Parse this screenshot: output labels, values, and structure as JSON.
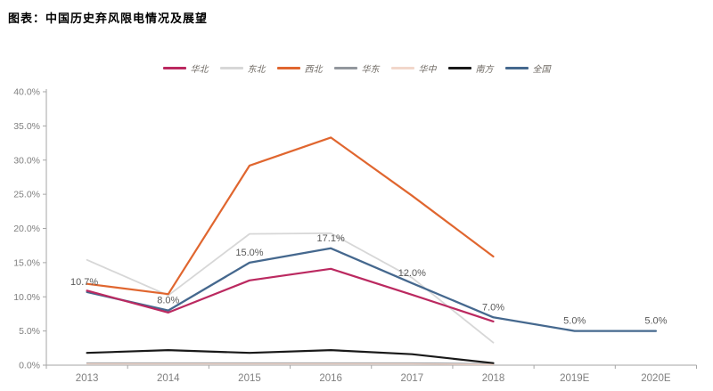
{
  "title": "图表：中国历史弃风限电情况及展望",
  "chart_data": {
    "type": "line",
    "title": "中国历史弃风限电情况及展望",
    "categories": [
      "2013",
      "2014",
      "2015",
      "2016",
      "2017",
      "2018",
      "2019E",
      "2020E"
    ],
    "series": [
      {
        "name": "东北",
        "color": "#d7d7d7",
        "width": 1.8,
        "values": [
          15.4,
          10.2,
          19.2,
          19.3,
          12.8,
          3.3,
          null,
          null
        ]
      },
      {
        "name": "西北",
        "color": "#e0662f",
        "width": 2.2,
        "values": [
          11.9,
          10.4,
          29.2,
          33.3,
          24.8,
          15.9,
          null,
          null
        ]
      },
      {
        "name": "华东",
        "color": "#92979d",
        "width": 1.6,
        "values": [
          0.3,
          0.3,
          0.3,
          0.3,
          0.3,
          0.2,
          null,
          null
        ]
      },
      {
        "name": "华中",
        "color": "#f2d7cb",
        "width": 1.5,
        "values": [
          0.2,
          0.2,
          0.2,
          0.2,
          0.2,
          0.1,
          null,
          null
        ]
      },
      {
        "name": "南方",
        "color": "#191919",
        "width": 2.2,
        "values": [
          1.8,
          2.2,
          1.8,
          2.2,
          1.6,
          0.3,
          null,
          null
        ]
      },
      {
        "name": "全国",
        "color": "#45688e",
        "width": 2.3,
        "values": [
          10.7,
          8.0,
          15.0,
          17.1,
          12.0,
          7.0,
          5.0,
          5.0
        ]
      },
      {
        "name": "华北",
        "color": "#bb2960",
        "width": 2.2,
        "values": [
          10.9,
          7.7,
          12.4,
          14.1,
          10.3,
          6.4,
          null,
          null
        ]
      }
    ],
    "legend_order": [
      "华北",
      "东北",
      "西北",
      "华东",
      "华中",
      "南方",
      "全国"
    ],
    "labeled_series": "全国",
    "data_labels": [
      "10.7%",
      "8.0%",
      "15.0%",
      "17.1%",
      "12.0%",
      "7.0%",
      "5.0%",
      "5.0%"
    ],
    "y_ticks": [
      "0.0%",
      "5.0%",
      "10.0%",
      "15.0%",
      "20.0%",
      "25.0%",
      "30.0%",
      "35.0%",
      "40.0%"
    ],
    "ylim": [
      0,
      40
    ],
    "ytick_step": 5,
    "grid": false,
    "legend_position": "top",
    "axis_color": "#a6a6a6",
    "tick_label_color": "#7f7f7f",
    "data_label_color": "#595959"
  }
}
